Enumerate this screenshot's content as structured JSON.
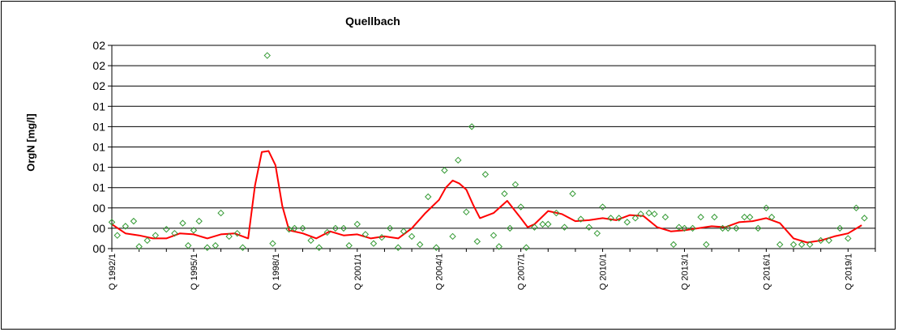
{
  "chart_data": {
    "type": "line",
    "title": "Quellbach",
    "ylabel": "OrgN [mg/l]",
    "xlabel": "",
    "ylim": [
      0,
      2.0
    ],
    "grid": true,
    "y_tick_labels": [
      "00",
      "00",
      "00",
      "01",
      "01",
      "01",
      "01",
      "01",
      "02",
      "02",
      "02"
    ],
    "x_tick_labels": [
      "Q 1992/1",
      "Q 1995/1",
      "Q 1998/1",
      "Q 2001/1",
      "Q 2004/1",
      "Q 2007/1",
      "Q 2010/1",
      "Q 2013/1",
      "Q 2016/1",
      "Q 2019/1"
    ],
    "x_range": [
      1992.0,
      2020.0
    ],
    "series": [
      {
        "kind": "line",
        "color": "#ff0000",
        "points": [
          [
            1992.0,
            0.24
          ],
          [
            1992.5,
            0.15
          ],
          [
            1993.0,
            0.13
          ],
          [
            1993.5,
            0.1
          ],
          [
            1994.0,
            0.1
          ],
          [
            1994.5,
            0.15
          ],
          [
            1995.0,
            0.14
          ],
          [
            1995.5,
            0.1
          ],
          [
            1996.0,
            0.14
          ],
          [
            1996.5,
            0.15
          ],
          [
            1997.0,
            0.1
          ],
          [
            1997.25,
            0.62
          ],
          [
            1997.5,
            0.95
          ],
          [
            1997.75,
            0.96
          ],
          [
            1998.0,
            0.82
          ],
          [
            1998.25,
            0.42
          ],
          [
            1998.5,
            0.18
          ],
          [
            1999.0,
            0.15
          ],
          [
            1999.5,
            0.1
          ],
          [
            2000.0,
            0.17
          ],
          [
            2000.5,
            0.13
          ],
          [
            2001.0,
            0.14
          ],
          [
            2001.5,
            0.1
          ],
          [
            2002.0,
            0.12
          ],
          [
            2002.5,
            0.1
          ],
          [
            2003.0,
            0.2
          ],
          [
            2003.5,
            0.35
          ],
          [
            2004.0,
            0.48
          ],
          [
            2004.25,
            0.6
          ],
          [
            2004.5,
            0.67
          ],
          [
            2004.75,
            0.64
          ],
          [
            2005.0,
            0.58
          ],
          [
            2005.25,
            0.43
          ],
          [
            2005.5,
            0.3
          ],
          [
            2006.0,
            0.35
          ],
          [
            2006.5,
            0.47
          ],
          [
            2007.0,
            0.3
          ],
          [
            2007.25,
            0.21
          ],
          [
            2007.5,
            0.24
          ],
          [
            2008.0,
            0.37
          ],
          [
            2008.5,
            0.34
          ],
          [
            2009.0,
            0.27
          ],
          [
            2009.5,
            0.28
          ],
          [
            2010.0,
            0.3
          ],
          [
            2010.5,
            0.28
          ],
          [
            2011.0,
            0.33
          ],
          [
            2011.5,
            0.32
          ],
          [
            2012.0,
            0.21
          ],
          [
            2012.5,
            0.17
          ],
          [
            2013.0,
            0.18
          ],
          [
            2013.5,
            0.2
          ],
          [
            2014.0,
            0.22
          ],
          [
            2014.5,
            0.21
          ],
          [
            2015.0,
            0.26
          ],
          [
            2015.5,
            0.27
          ],
          [
            2016.0,
            0.3
          ],
          [
            2016.5,
            0.25
          ],
          [
            2017.0,
            0.1
          ],
          [
            2017.5,
            0.06
          ],
          [
            2018.0,
            0.08
          ],
          [
            2018.5,
            0.12
          ],
          [
            2019.0,
            0.15
          ],
          [
            2019.5,
            0.23
          ]
        ]
      },
      {
        "kind": "scatter",
        "color": "#339933",
        "points": [
          [
            1992.0,
            0.26
          ],
          [
            1992.2,
            0.13
          ],
          [
            1992.5,
            0.22
          ],
          [
            1992.8,
            0.27
          ],
          [
            1993.0,
            0.02
          ],
          [
            1993.3,
            0.08
          ],
          [
            1993.6,
            0.13
          ],
          [
            1994.0,
            0.19
          ],
          [
            1994.3,
            0.15
          ],
          [
            1994.6,
            0.25
          ],
          [
            1994.8,
            0.03
          ],
          [
            1995.0,
            0.18
          ],
          [
            1995.2,
            0.27
          ],
          [
            1995.5,
            0.01
          ],
          [
            1995.8,
            0.03
          ],
          [
            1996.0,
            0.35
          ],
          [
            1996.3,
            0.12
          ],
          [
            1996.6,
            0.15
          ],
          [
            1996.8,
            0.01
          ],
          [
            1997.7,
            1.9
          ],
          [
            1997.9,
            0.05
          ],
          [
            1998.5,
            0.19
          ],
          [
            1998.7,
            0.2
          ],
          [
            1999.0,
            0.2
          ],
          [
            1999.3,
            0.08
          ],
          [
            1999.6,
            0.01
          ],
          [
            1999.9,
            0.16
          ],
          [
            2000.2,
            0.2
          ],
          [
            2000.5,
            0.2
          ],
          [
            2000.7,
            0.03
          ],
          [
            2001.0,
            0.24
          ],
          [
            2001.3,
            0.14
          ],
          [
            2001.6,
            0.05
          ],
          [
            2001.9,
            0.11
          ],
          [
            2002.2,
            0.2
          ],
          [
            2002.5,
            0.01
          ],
          [
            2002.7,
            0.17
          ],
          [
            2003.0,
            0.12
          ],
          [
            2003.3,
            0.04
          ],
          [
            2003.6,
            0.51
          ],
          [
            2003.9,
            0.01
          ],
          [
            2004.2,
            0.77
          ],
          [
            2004.5,
            0.12
          ],
          [
            2004.7,
            0.87
          ],
          [
            2005.0,
            0.36
          ],
          [
            2005.2,
            1.2
          ],
          [
            2005.4,
            0.07
          ],
          [
            2005.7,
            0.73
          ],
          [
            2006.0,
            0.13
          ],
          [
            2006.2,
            0.02
          ],
          [
            2006.4,
            0.54
          ],
          [
            2006.6,
            0.2
          ],
          [
            2006.8,
            0.63
          ],
          [
            2007.0,
            0.41
          ],
          [
            2007.2,
            0.01
          ],
          [
            2007.5,
            0.21
          ],
          [
            2007.8,
            0.24
          ],
          [
            2008.0,
            0.24
          ],
          [
            2008.3,
            0.35
          ],
          [
            2008.6,
            0.21
          ],
          [
            2008.9,
            0.54
          ],
          [
            2009.2,
            0.29
          ],
          [
            2009.5,
            0.21
          ],
          [
            2009.8,
            0.15
          ],
          [
            2010.0,
            0.41
          ],
          [
            2010.3,
            0.3
          ],
          [
            2010.6,
            0.3
          ],
          [
            2010.9,
            0.26
          ],
          [
            2011.2,
            0.3
          ],
          [
            2011.4,
            0.34
          ],
          [
            2011.7,
            0.35
          ],
          [
            2011.9,
            0.34
          ],
          [
            2012.3,
            0.31
          ],
          [
            2012.6,
            0.04
          ],
          [
            2012.8,
            0.21
          ],
          [
            2013.0,
            0.2
          ],
          [
            2013.3,
            0.2
          ],
          [
            2013.6,
            0.31
          ],
          [
            2013.8,
            0.04
          ],
          [
            2014.1,
            0.31
          ],
          [
            2014.4,
            0.2
          ],
          [
            2014.6,
            0.2
          ],
          [
            2014.9,
            0.2
          ],
          [
            2015.2,
            0.31
          ],
          [
            2015.4,
            0.31
          ],
          [
            2015.7,
            0.2
          ],
          [
            2016.0,
            0.4
          ],
          [
            2016.2,
            0.31
          ],
          [
            2016.5,
            0.04
          ],
          [
            2017.0,
            0.04
          ],
          [
            2017.3,
            0.04
          ],
          [
            2017.6,
            0.04
          ],
          [
            2018.0,
            0.08
          ],
          [
            2018.3,
            0.08
          ],
          [
            2018.7,
            0.2
          ],
          [
            2019.0,
            0.1
          ],
          [
            2019.3,
            0.4
          ],
          [
            2019.6,
            0.3
          ]
        ]
      }
    ]
  }
}
